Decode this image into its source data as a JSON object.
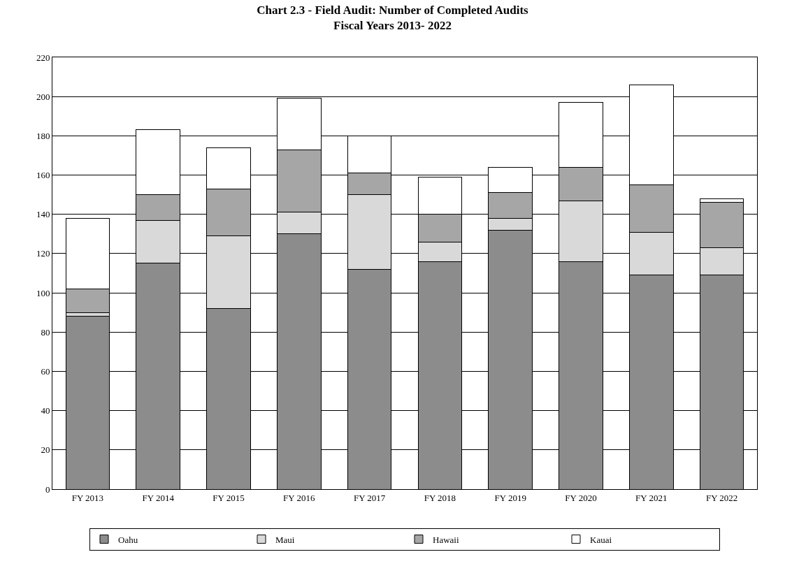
{
  "chart_data": {
    "type": "bar",
    "title": "Chart 2.3 - Field Audit: Number of Completed Audits\nFiscal Years 2013- 2022",
    "categories": [
      "FY 2013",
      "FY 2014",
      "FY 2015",
      "FY 2016",
      "FY 2017",
      "FY 2018",
      "FY 2019",
      "FY 2020",
      "FY 2021",
      "FY 2022"
    ],
    "stacked": true,
    "series": [
      {
        "name": "Oahu",
        "color": "#8c8c8c",
        "values": [
          88,
          115,
          92,
          130,
          112,
          116,
          132,
          116,
          109,
          109
        ]
      },
      {
        "name": "Maui",
        "color": "#d9d9d9",
        "values": [
          2,
          22,
          37,
          11,
          38,
          10,
          6,
          31,
          22,
          14
        ]
      },
      {
        "name": "Hawaii",
        "color": "#a6a6a6",
        "values": [
          12,
          13,
          24,
          32,
          11,
          14,
          13,
          17,
          24,
          23
        ]
      },
      {
        "name": "Kauai",
        "color": "#ffffff",
        "values": [
          36,
          33,
          21,
          26,
          19,
          19,
          13,
          33,
          51,
          2
        ]
      }
    ],
    "ylim": [
      0,
      220
    ],
    "yticks": [
      0,
      20,
      40,
      60,
      80,
      100,
      120,
      140,
      160,
      180,
      200,
      220
    ],
    "grid": "y",
    "legend": "bottom"
  }
}
